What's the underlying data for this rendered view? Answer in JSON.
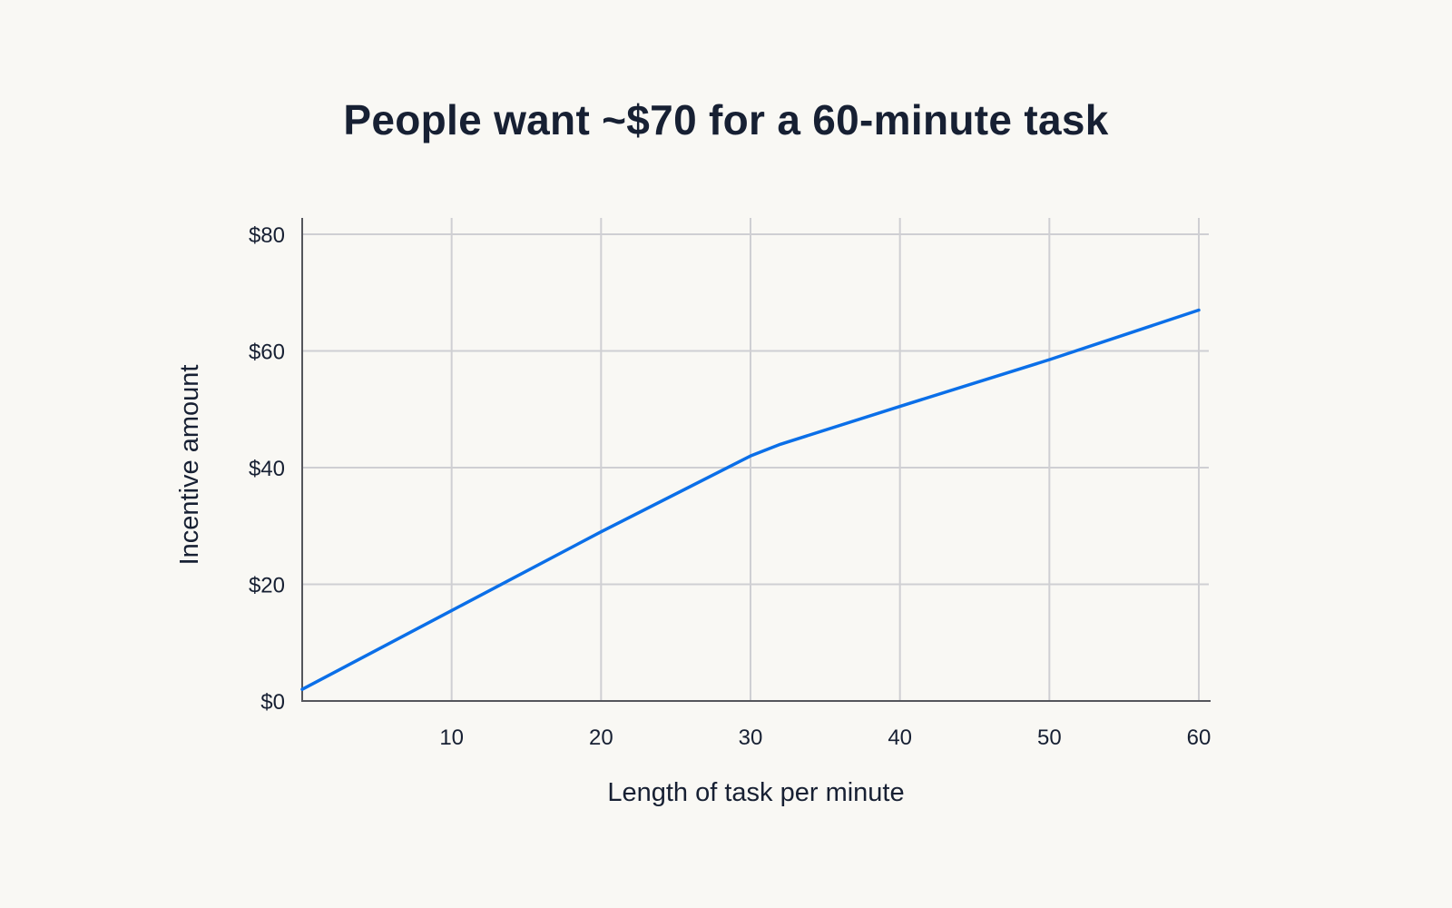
{
  "chart_data": {
    "type": "line",
    "title": "People want ~$70 for a 60-minute task",
    "xlabel": "Length of task per minute",
    "ylabel": "Incentive amount",
    "xlim": [
      0,
      60
    ],
    "ylim": [
      0,
      80
    ],
    "x_ticks": [
      10,
      20,
      30,
      40,
      50,
      60
    ],
    "x_tick_labels": [
      "10",
      "20",
      "30",
      "40",
      "50",
      "60"
    ],
    "y_ticks": [
      0,
      20,
      40,
      60,
      80
    ],
    "y_tick_labels": [
      "$0",
      "$20",
      "$40",
      "$60",
      "$80"
    ],
    "grid": true,
    "legend": "none",
    "series": [
      {
        "color": "#0b6fe8",
        "x": [
          0,
          10,
          20,
          30,
          32,
          40,
          50,
          60
        ],
        "y": [
          2,
          15.5,
          29,
          42,
          44,
          50.5,
          58.5,
          67
        ]
      }
    ]
  }
}
